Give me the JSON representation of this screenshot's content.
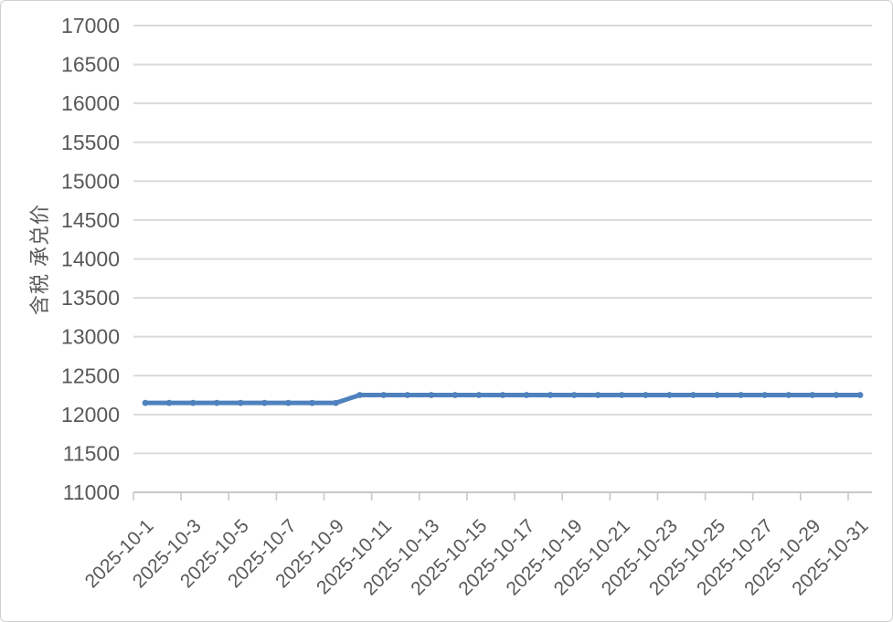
{
  "chart": {
    "background_color": "#ffffff",
    "border_color": "#d0d0d0",
    "text_color": "#595959",
    "line_color": "#4f81bd",
    "marker_color": "#4f81bd",
    "gridline_color": "#dadada",
    "axis_line_color": "#c8c8c8"
  },
  "chart_data": {
    "type": "line",
    "title": "",
    "xlabel": "",
    "ylabel": "含税 承兑价",
    "legend_visible": false,
    "grid": true,
    "marker": "circle",
    "ylim": [
      11000,
      17000
    ],
    "ytick_step": 500,
    "yticks": [
      11000,
      11500,
      12000,
      12500,
      13000,
      13500,
      14000,
      14500,
      15000,
      15500,
      16000,
      16500,
      17000
    ],
    "xtick_label_interval": 2,
    "xtick_labels": [
      "2025-10-1",
      "2025-10-3",
      "2025-10-5",
      "2025-10-7",
      "2025-10-9",
      "2025-10-11",
      "2025-10-13",
      "2025-10-15",
      "2025-10-17",
      "2025-10-19",
      "2025-10-21",
      "2025-10-23",
      "2025-10-25",
      "2025-10-27",
      "2025-10-29",
      "2025-10-31"
    ],
    "x": [
      "2025-10-1",
      "2025-10-2",
      "2025-10-3",
      "2025-10-4",
      "2025-10-5",
      "2025-10-6",
      "2025-10-7",
      "2025-10-8",
      "2025-10-9",
      "2025-10-10",
      "2025-10-11",
      "2025-10-12",
      "2025-10-13",
      "2025-10-14",
      "2025-10-15",
      "2025-10-16",
      "2025-10-17",
      "2025-10-18",
      "2025-10-19",
      "2025-10-20",
      "2025-10-21",
      "2025-10-22",
      "2025-10-23",
      "2025-10-24",
      "2025-10-25",
      "2025-10-26",
      "2025-10-27",
      "2025-10-28",
      "2025-10-29",
      "2025-10-30",
      "2025-10-31"
    ],
    "series": [
      {
        "name": "含税 承兑价",
        "values": [
          12150,
          12150,
          12150,
          12150,
          12150,
          12150,
          12150,
          12150,
          12150,
          12250,
          12250,
          12250,
          12250,
          12250,
          12250,
          12250,
          12250,
          12250,
          12250,
          12250,
          12250,
          12250,
          12250,
          12250,
          12250,
          12250,
          12250,
          12250,
          12250,
          12250,
          12250
        ]
      }
    ]
  }
}
